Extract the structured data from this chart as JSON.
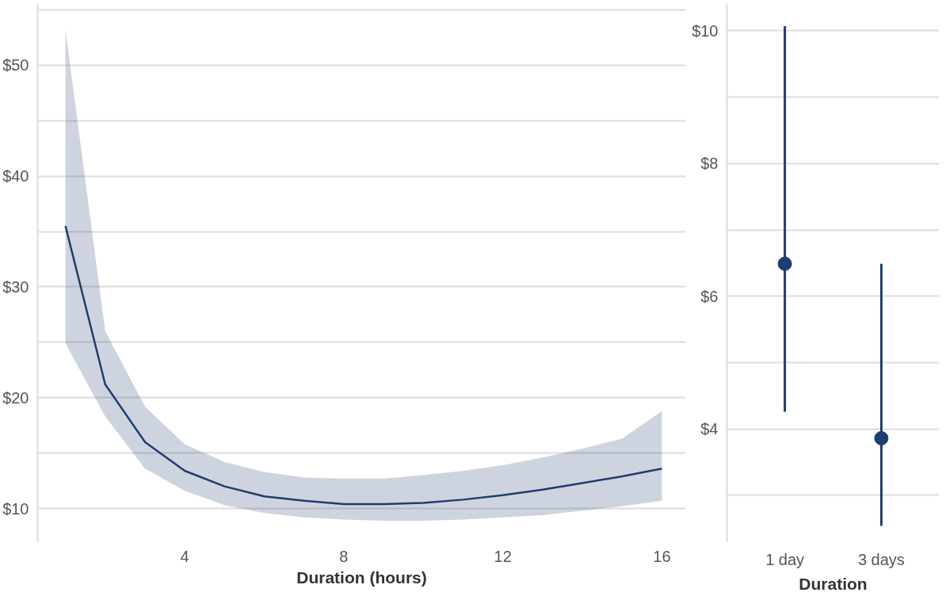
{
  "chart_data": [
    {
      "type": "line",
      "xlabel": "Duration (hours)",
      "x": [
        1,
        2,
        3,
        4,
        5,
        6,
        7,
        8,
        9,
        10,
        11,
        12,
        13,
        14,
        15,
        16
      ],
      "series": [
        {
          "color": "#1f3d6e",
          "values": [
            35.5,
            21.2,
            16.0,
            13.4,
            12.0,
            11.1,
            10.7,
            10.4,
            10.4,
            10.5,
            10.8,
            11.2,
            11.7,
            12.3,
            12.9,
            13.6
          ],
          "lower": [
            24.9,
            18.3,
            13.6,
            11.6,
            10.3,
            9.6,
            9.2,
            9.0,
            8.9,
            8.9,
            9.0,
            9.2,
            9.4,
            9.8,
            10.2,
            10.7
          ],
          "upper": [
            53.2,
            26.0,
            19.2,
            15.8,
            14.2,
            13.3,
            12.8,
            12.7,
            12.7,
            13.0,
            13.4,
            13.9,
            14.6,
            15.4,
            16.3,
            18.8
          ]
        }
      ],
      "xlim": [
        0.3,
        16.6
      ],
      "xticks": [
        4,
        8,
        12,
        16
      ],
      "ylim": [
        7,
        55.5
      ],
      "yticks": [
        {
          "value": 10,
          "label": "$10"
        },
        {
          "value": 15,
          "label": null
        },
        {
          "value": 20,
          "label": "$20"
        },
        {
          "value": 25,
          "label": null
        },
        {
          "value": 30,
          "label": "$30"
        },
        {
          "value": 35,
          "label": null
        },
        {
          "value": 40,
          "label": "$40"
        },
        {
          "value": 45,
          "label": null
        },
        {
          "value": 50,
          "label": "$50"
        },
        {
          "value": 55,
          "label": null
        }
      ],
      "grid": "y",
      "marker": "none",
      "line_style": "solid"
    },
    {
      "type": "scatter",
      "xlabel": "Duration",
      "categories": [
        "1 day",
        "3 days"
      ],
      "ylim": [
        2.3,
        10.4
      ],
      "series": [
        {
          "color": "#1f3d6e",
          "values": [
            6.49,
            3.86
          ],
          "errors": [
            [
              4.26,
              10.07
            ],
            [
              2.54,
              6.49
            ]
          ]
        }
      ],
      "yticks": [
        {
          "value": 3,
          "label": null
        },
        {
          "value": 4,
          "label": "$4"
        },
        {
          "value": 5,
          "label": null
        },
        {
          "value": 6,
          "label": "$6"
        },
        {
          "value": 7,
          "label": null
        },
        {
          "value": 8,
          "label": "$8"
        },
        {
          "value": 9,
          "label": null
        },
        {
          "value": 10,
          "label": "$10"
        }
      ],
      "grid": "y",
      "marker": "circle"
    }
  ]
}
